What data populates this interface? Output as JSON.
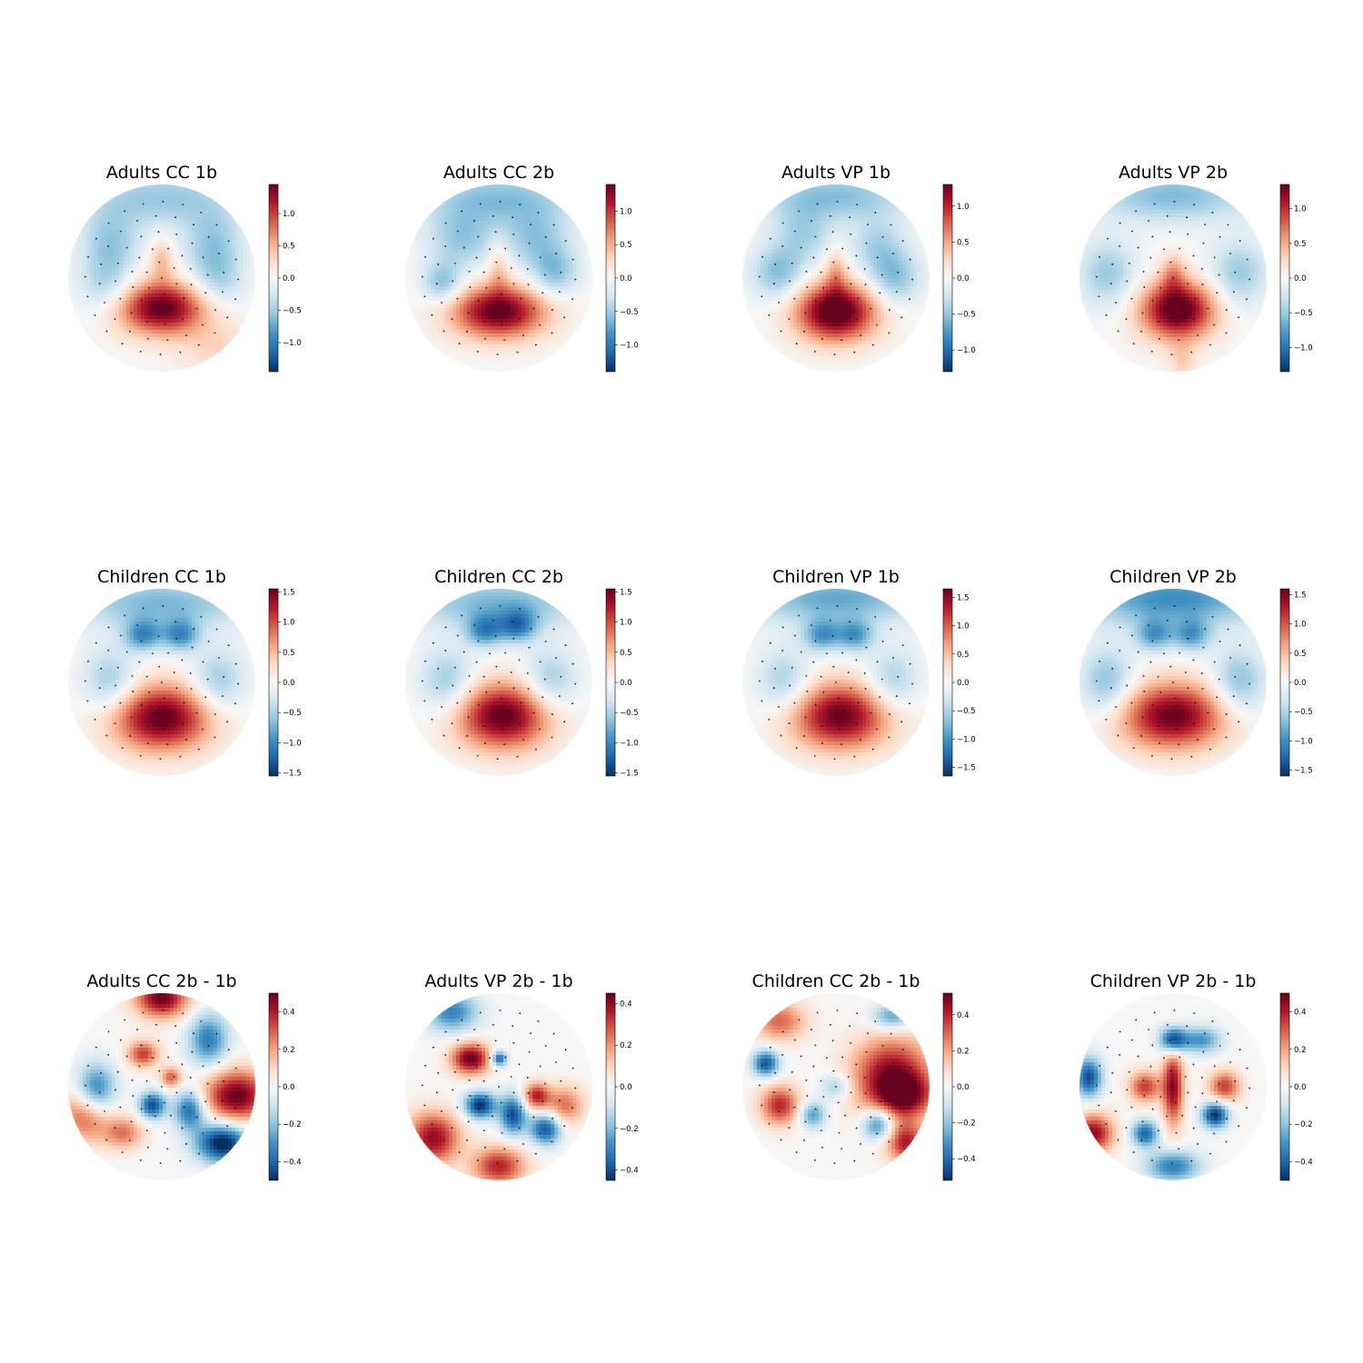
{
  "chart_data": [
    {
      "type": "heatmap",
      "title": "Adults CC 1b",
      "ticks": [
        -1.0,
        -0.5,
        0.0,
        0.5,
        1.0
      ],
      "vmin": -1.45,
      "vmax": 1.45,
      "blobs": [
        [
          0.0,
          0.32,
          0.33,
          0.2,
          1.5
        ],
        [
          0.0,
          -0.2,
          0.09,
          0.16,
          0.45
        ],
        [
          0.0,
          -0.85,
          0.6,
          0.22,
          -0.55
        ],
        [
          -0.55,
          -0.35,
          0.22,
          0.25,
          -0.55
        ],
        [
          0.55,
          -0.35,
          0.22,
          0.25,
          -0.55
        ],
        [
          0.6,
          0.75,
          0.3,
          0.2,
          0.3
        ],
        [
          -0.6,
          0.1,
          0.2,
          0.2,
          -0.4
        ],
        [
          0.6,
          0.05,
          0.2,
          0.2,
          -0.4
        ]
      ]
    },
    {
      "type": "heatmap",
      "title": "Adults CC 2b",
      "ticks": [
        -1.0,
        -0.5,
        0.0,
        0.5,
        1.0
      ],
      "vmin": -1.4,
      "vmax": 1.4,
      "blobs": [
        [
          0.0,
          0.36,
          0.35,
          0.2,
          1.45
        ],
        [
          0.0,
          -0.12,
          0.08,
          0.2,
          0.4
        ],
        [
          0.0,
          -0.85,
          0.6,
          0.22,
          -0.6
        ],
        [
          -0.6,
          0.05,
          0.15,
          0.15,
          -0.6
        ],
        [
          0.6,
          -0.05,
          0.18,
          0.18,
          -0.55
        ],
        [
          -0.4,
          -0.4,
          0.25,
          0.22,
          -0.5
        ],
        [
          0.4,
          -0.4,
          0.25,
          0.22,
          -0.5
        ]
      ]
    },
    {
      "type": "heatmap",
      "title": "Adults VP 1b",
      "ticks": [
        -1.0,
        -0.5,
        0.0,
        0.5,
        1.0
      ],
      "vmin": -1.3,
      "vmax": 1.3,
      "blobs": [
        [
          0.0,
          0.36,
          0.3,
          0.22,
          1.5
        ],
        [
          0.0,
          -0.08,
          0.08,
          0.18,
          0.4
        ],
        [
          0.0,
          -0.88,
          0.6,
          0.2,
          -0.55
        ],
        [
          -0.62,
          -0.05,
          0.2,
          0.2,
          -0.55
        ],
        [
          0.62,
          0.0,
          0.2,
          0.2,
          -0.55
        ],
        [
          -0.35,
          -0.45,
          0.22,
          0.22,
          -0.4
        ],
        [
          0.45,
          -0.35,
          0.2,
          0.2,
          -0.4
        ]
      ]
    },
    {
      "type": "heatmap",
      "title": "Adults VP 2b",
      "ticks": [
        -1.0,
        -0.5,
        0.0,
        0.5,
        1.0
      ],
      "vmin": -1.35,
      "vmax": 1.35,
      "blobs": [
        [
          0.05,
          0.34,
          0.28,
          0.22,
          1.5
        ],
        [
          0.0,
          -0.05,
          0.09,
          0.15,
          0.45
        ],
        [
          0.0,
          -0.88,
          0.6,
          0.2,
          -0.6
        ],
        [
          -0.7,
          -0.05,
          0.22,
          0.25,
          -0.5
        ],
        [
          0.7,
          -0.05,
          0.22,
          0.25,
          -0.5
        ],
        [
          0.1,
          0.9,
          0.1,
          0.15,
          0.3
        ]
      ]
    },
    {
      "type": "heatmap",
      "title": "Children CC 1b",
      "ticks": [
        -1.5,
        -1.0,
        -0.5,
        0.0,
        0.5,
        1.0,
        1.5
      ],
      "vmin": -1.55,
      "vmax": 1.55,
      "blobs": [
        [
          0.0,
          0.38,
          0.38,
          0.25,
          1.6
        ],
        [
          0.0,
          -0.85,
          0.7,
          0.2,
          -0.7
        ],
        [
          -0.2,
          -0.5,
          0.14,
          0.12,
          -0.9
        ],
        [
          0.2,
          -0.5,
          0.14,
          0.12,
          -0.9
        ],
        [
          -0.55,
          0.0,
          0.2,
          0.25,
          -0.6
        ],
        [
          0.6,
          0.0,
          0.2,
          0.25,
          -0.6
        ]
      ]
    },
    {
      "type": "heatmap",
      "title": "Children CC 2b",
      "ticks": [
        -1.5,
        -1.0,
        -0.5,
        0.0,
        0.5,
        1.0,
        1.5
      ],
      "vmin": -1.55,
      "vmax": 1.55,
      "blobs": [
        [
          0.05,
          0.36,
          0.36,
          0.25,
          1.6
        ],
        [
          0.0,
          -0.85,
          0.7,
          0.2,
          -0.7
        ],
        [
          -0.15,
          -0.55,
          0.14,
          0.12,
          -0.9
        ],
        [
          0.2,
          -0.6,
          0.14,
          0.12,
          -0.95
        ],
        [
          -0.55,
          0.0,
          0.2,
          0.25,
          -0.6
        ],
        [
          0.55,
          0.0,
          0.2,
          0.25,
          -0.6
        ]
      ]
    },
    {
      "type": "heatmap",
      "title": "Children VP 1b",
      "ticks": [
        -1.5,
        -1.0,
        -0.5,
        0.0,
        0.5,
        1.0,
        1.5
      ],
      "vmin": -1.65,
      "vmax": 1.65,
      "blobs": [
        [
          0.05,
          0.36,
          0.38,
          0.25,
          1.65
        ],
        [
          0.0,
          -0.9,
          0.7,
          0.2,
          -0.85
        ],
        [
          -0.15,
          -0.5,
          0.14,
          0.12,
          -0.9
        ],
        [
          0.2,
          -0.5,
          0.14,
          0.12,
          -0.9
        ],
        [
          -0.55,
          0.0,
          0.2,
          0.25,
          -0.6
        ],
        [
          0.6,
          0.0,
          0.2,
          0.25,
          -0.6
        ]
      ]
    },
    {
      "type": "heatmap",
      "title": "Children VP 2b",
      "ticks": [
        -1.5,
        -1.0,
        -0.5,
        0.0,
        0.5,
        1.0,
        1.5
      ],
      "vmin": -1.6,
      "vmax": 1.6,
      "blobs": [
        [
          0.0,
          0.36,
          0.4,
          0.25,
          1.6
        ],
        [
          0.0,
          -0.9,
          0.75,
          0.22,
          -1.0
        ],
        [
          -0.2,
          -0.5,
          0.14,
          0.12,
          -0.8
        ],
        [
          0.2,
          -0.5,
          0.14,
          0.12,
          -0.8
        ],
        [
          -0.7,
          0.0,
          0.2,
          0.25,
          -0.7
        ],
        [
          0.7,
          0.0,
          0.2,
          0.25,
          -0.7
        ]
      ]
    },
    {
      "type": "heatmap",
      "title": "Adults CC 2b - 1b",
      "ticks": [
        -0.4,
        -0.2,
        0.0,
        0.2,
        0.4
      ],
      "vmin": -0.5,
      "vmax": 0.5,
      "blobs": [
        [
          0.0,
          -0.95,
          0.2,
          0.15,
          0.5
        ],
        [
          0.8,
          0.1,
          0.25,
          0.2,
          0.5
        ],
        [
          0.65,
          0.6,
          0.2,
          0.15,
          -0.55
        ],
        [
          -0.7,
          0.05,
          0.15,
          0.2,
          -0.4
        ],
        [
          -0.1,
          0.2,
          0.1,
          0.1,
          -0.45
        ],
        [
          0.3,
          0.25,
          0.12,
          0.15,
          -0.4
        ],
        [
          -0.8,
          0.3,
          0.2,
          0.2,
          0.35
        ],
        [
          -0.2,
          -0.35,
          0.12,
          0.1,
          0.35
        ],
        [
          0.5,
          -0.5,
          0.15,
          0.2,
          -0.35
        ],
        [
          0.1,
          -0.1,
          0.08,
          0.08,
          0.3
        ],
        [
          -0.4,
          0.5,
          0.15,
          0.12,
          0.25
        ]
      ]
    },
    {
      "type": "heatmap",
      "title": "Adults VP 2b - 1b",
      "ticks": [
        -0.4,
        -0.2,
        0.0,
        0.2,
        0.4
      ],
      "vmin": -0.45,
      "vmax": 0.45,
      "blobs": [
        [
          -0.3,
          -0.3,
          0.15,
          0.12,
          0.45
        ],
        [
          -0.2,
          0.2,
          0.12,
          0.1,
          -0.45
        ],
        [
          0.15,
          0.3,
          0.1,
          0.15,
          -0.4
        ],
        [
          0.4,
          0.1,
          0.1,
          0.1,
          0.35
        ],
        [
          -0.7,
          0.55,
          0.2,
          0.2,
          0.4
        ],
        [
          0.0,
          0.85,
          0.2,
          0.15,
          0.35
        ],
        [
          0.5,
          0.45,
          0.12,
          0.12,
          -0.4
        ],
        [
          -0.5,
          -0.8,
          0.2,
          0.15,
          -0.3
        ],
        [
          0.7,
          0.2,
          0.15,
          0.15,
          0.25
        ],
        [
          0.0,
          -0.3,
          0.06,
          0.06,
          -0.4
        ]
      ]
    },
    {
      "type": "heatmap",
      "title": "Children CC 2b - 1b",
      "ticks": [
        -0.4,
        -0.2,
        0.0,
        0.2,
        0.4
      ],
      "vmin": -0.52,
      "vmax": 0.52,
      "blobs": [
        [
          0.6,
          -0.1,
          0.3,
          0.3,
          0.5
        ],
        [
          0.75,
          0.1,
          0.2,
          0.15,
          0.3
        ],
        [
          0.75,
          0.6,
          0.15,
          0.15,
          0.4
        ],
        [
          -0.75,
          -0.25,
          0.1,
          0.1,
          -0.45
        ],
        [
          -0.6,
          0.2,
          0.15,
          0.15,
          0.4
        ],
        [
          0.45,
          0.4,
          0.12,
          0.12,
          -0.4
        ],
        [
          -0.6,
          -0.7,
          0.2,
          0.15,
          0.3
        ],
        [
          0.6,
          -0.75,
          0.15,
          0.1,
          -0.3
        ],
        [
          0.0,
          0.0,
          0.12,
          0.1,
          -0.2
        ],
        [
          -0.25,
          0.3,
          0.1,
          0.1,
          -0.3
        ]
      ]
    },
    {
      "type": "heatmap",
      "title": "Children VP 2b - 1b",
      "ticks": [
        -0.4,
        -0.2,
        0.0,
        0.2,
        0.4
      ],
      "vmin": -0.5,
      "vmax": 0.5,
      "blobs": [
        [
          0.0,
          -0.5,
          0.1,
          0.1,
          -0.5
        ],
        [
          0.0,
          0.0,
          0.08,
          0.3,
          0.45
        ],
        [
          -0.85,
          0.5,
          0.15,
          0.15,
          0.45
        ],
        [
          -0.3,
          0.0,
          0.12,
          0.12,
          0.35
        ],
        [
          0.45,
          0.3,
          0.1,
          0.1,
          -0.5
        ],
        [
          -0.3,
          0.5,
          0.1,
          0.1,
          -0.4
        ],
        [
          0.55,
          0.0,
          0.12,
          0.12,
          0.35
        ],
        [
          0.0,
          0.85,
          0.2,
          0.12,
          -0.35
        ],
        [
          -0.9,
          -0.1,
          0.1,
          0.15,
          -0.45
        ],
        [
          0.3,
          -0.5,
          0.15,
          0.1,
          -0.3
        ]
      ]
    }
  ]
}
